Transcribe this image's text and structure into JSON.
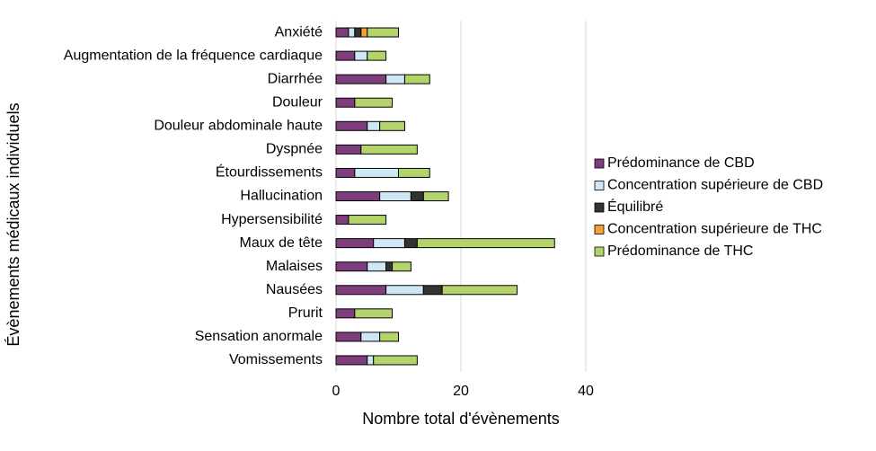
{
  "chart_data": {
    "type": "stacked-bar-horizontal",
    "x_label": "Nombre total d'évènements",
    "y_label": "Évènements médicaux individuels",
    "categories": [
      "Anxiété",
      "Augmentation de la fréquence cardiaque",
      "Diarrhée",
      "Douleur",
      "Douleur abdominale haute",
      "Dyspnée",
      "Étourdissements",
      "Hallucination",
      "Hypersensibilité",
      "Maux de tête",
      "Malaises",
      "Nausées",
      "Prurit",
      "Sensation anormale",
      "Vomissements"
    ],
    "series": [
      {
        "name": "Prédominance de CBD",
        "color": "#7e3d7c",
        "values": [
          2,
          3,
          8,
          3,
          5,
          4,
          3,
          7,
          2,
          6,
          5,
          8,
          3,
          4,
          5
        ]
      },
      {
        "name": "Concentration supérieure de CBD",
        "color": "#cde8f4",
        "values": [
          1,
          2,
          3,
          0,
          2,
          0,
          7,
          5,
          0,
          5,
          3,
          6,
          0,
          3,
          1
        ]
      },
      {
        "name": "Équilibré",
        "color": "#333333",
        "values": [
          1,
          0,
          0,
          0,
          0,
          0,
          0,
          2,
          0,
          2,
          1,
          3,
          0,
          0,
          0
        ]
      },
      {
        "name": "Concentration supérieure de THC",
        "color": "#f4a034",
        "values": [
          1,
          0,
          0,
          0,
          0,
          0,
          0,
          0,
          0,
          0,
          0,
          0,
          0,
          0,
          0
        ]
      },
      {
        "name": "Prédominance de THC",
        "color": "#b3d36b",
        "values": [
          5,
          3,
          4,
          6,
          4,
          9,
          5,
          4,
          6,
          22,
          3,
          12,
          6,
          3,
          7
        ]
      }
    ],
    "xlim": [
      0,
      40
    ],
    "xticks": [
      0,
      20,
      40
    ],
    "grid": true,
    "legend": "right"
  }
}
